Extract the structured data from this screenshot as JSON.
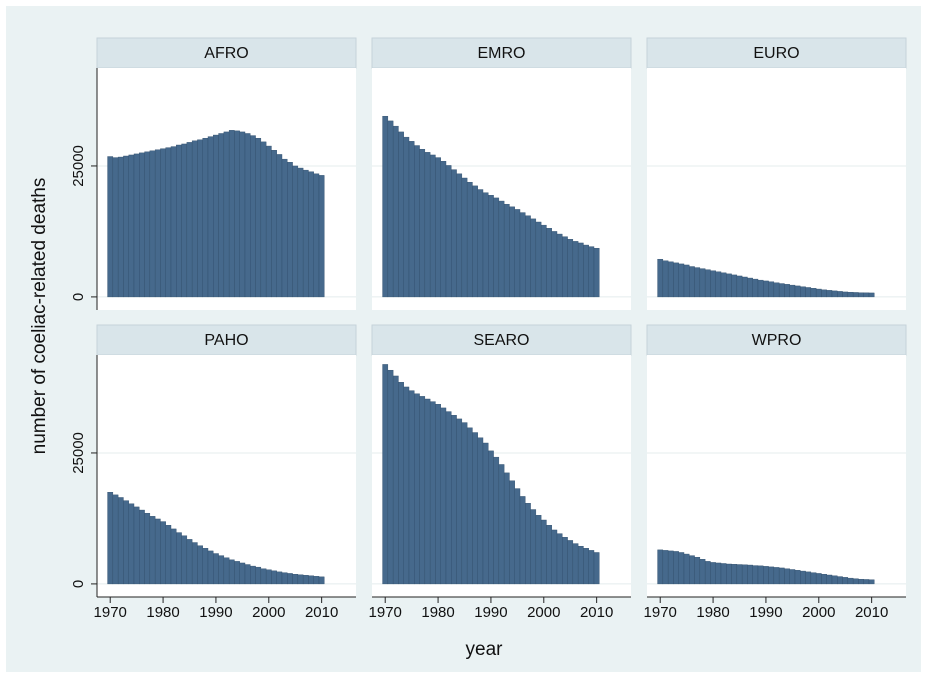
{
  "chart_data": {
    "type": "bar",
    "x_label": "year",
    "y_label": "number of coeliac-related deaths",
    "color": "#46698c",
    "grid": true,
    "x": [
      1970,
      1971,
      1972,
      1973,
      1974,
      1975,
      1976,
      1977,
      1978,
      1979,
      1980,
      1981,
      1982,
      1983,
      1984,
      1985,
      1986,
      1987,
      1988,
      1989,
      1990,
      1991,
      1992,
      1993,
      1994,
      1995,
      1996,
      1997,
      1998,
      1999,
      2000,
      2001,
      2002,
      2003,
      2004,
      2005,
      2006,
      2007,
      2008,
      2009,
      2010
    ],
    "xlim": [
      1967.5,
      2016.5
    ],
    "xticks": [
      1970,
      1980,
      1990,
      2000,
      2010
    ],
    "ylim": [
      -2500,
      43700
    ],
    "yticks": [
      0,
      25000
    ],
    "series": [
      {
        "name": "AFRO",
        "values": [
          26800,
          26600,
          26700,
          26900,
          27100,
          27300,
          27500,
          27700,
          27900,
          28100,
          28300,
          28500,
          28700,
          29000,
          29200,
          29500,
          29800,
          30000,
          30300,
          30600,
          30900,
          31200,
          31500,
          31800,
          31700,
          31500,
          31200,
          30800,
          30300,
          29600,
          28800,
          28000,
          27200,
          26300,
          25700,
          25000,
          24600,
          24200,
          23900,
          23500,
          23200
        ]
      },
      {
        "name": "EMRO",
        "values": [
          34500,
          33600,
          32600,
          31500,
          30500,
          29700,
          28900,
          28200,
          27600,
          27100,
          26600,
          25900,
          25100,
          24300,
          23500,
          22700,
          21900,
          21200,
          20500,
          19900,
          19400,
          18900,
          18300,
          17700,
          17200,
          16700,
          16100,
          15500,
          14900,
          14300,
          13700,
          13100,
          12500,
          12000,
          11500,
          11000,
          10600,
          10300,
          9900,
          9600,
          9300
        ]
      },
      {
        "name": "EURO",
        "values": [
          7200,
          6900,
          6700,
          6500,
          6300,
          6100,
          5800,
          5600,
          5400,
          5200,
          5000,
          4800,
          4600,
          4400,
          4200,
          4000,
          3800,
          3600,
          3400,
          3200,
          3050,
          2900,
          2700,
          2550,
          2400,
          2250,
          2100,
          1950,
          1800,
          1650,
          1500,
          1350,
          1250,
          1150,
          1050,
          950,
          900,
          850,
          800,
          780,
          760
        ]
      },
      {
        "name": "PAHO",
        "values": [
          17500,
          17000,
          16500,
          15900,
          15300,
          14700,
          14100,
          13500,
          12900,
          12400,
          11900,
          11200,
          10500,
          9800,
          9200,
          8500,
          7900,
          7300,
          6800,
          6300,
          5800,
          5400,
          5000,
          4600,
          4300,
          4000,
          3700,
          3400,
          3200,
          2900,
          2700,
          2500,
          2300,
          2150,
          2000,
          1850,
          1750,
          1650,
          1550,
          1450,
          1350
        ]
      },
      {
        "name": "SEARO",
        "values": [
          41900,
          40800,
          39700,
          38500,
          37600,
          36900,
          36300,
          35800,
          35300,
          34800,
          34300,
          33600,
          32900,
          32200,
          31500,
          30800,
          29800,
          28900,
          27900,
          26900,
          25400,
          24200,
          22800,
          21200,
          19700,
          18200,
          16700,
          15400,
          14200,
          13100,
          12200,
          11200,
          10300,
          9600,
          8900,
          8300,
          7700,
          7200,
          6800,
          6400,
          6000
        ]
      },
      {
        "name": "WPRO",
        "values": [
          6500,
          6400,
          6300,
          6200,
          6000,
          5700,
          5400,
          5100,
          4700,
          4300,
          4100,
          4000,
          3900,
          3800,
          3750,
          3700,
          3650,
          3600,
          3500,
          3450,
          3350,
          3250,
          3150,
          3050,
          2900,
          2750,
          2600,
          2450,
          2300,
          2150,
          2000,
          1850,
          1700,
          1550,
          1400,
          1250,
          1100,
          1000,
          900,
          850,
          800
        ]
      }
    ]
  }
}
